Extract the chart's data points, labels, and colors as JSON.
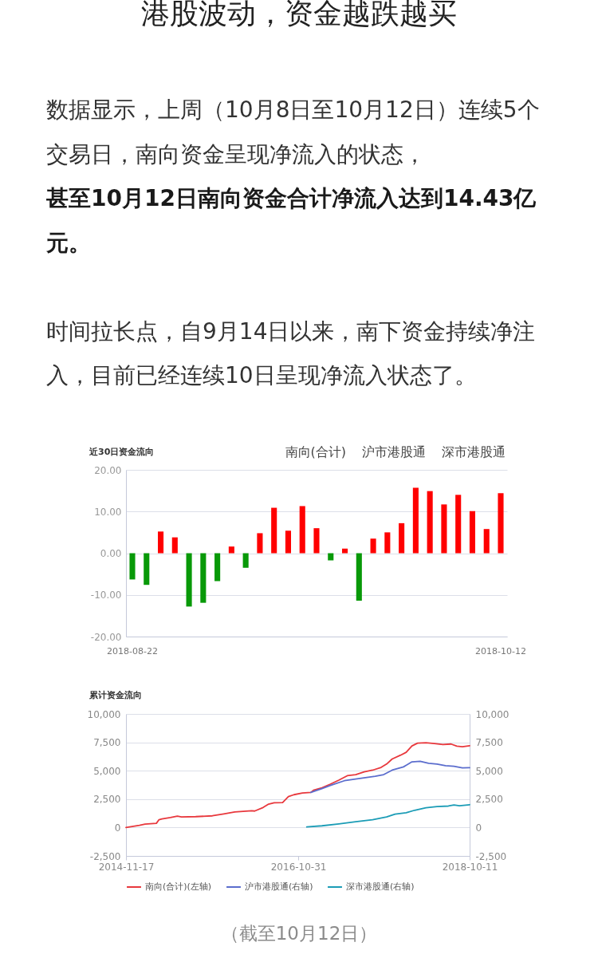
{
  "chart_data": [
    {
      "type": "other",
      "title": "港股波动，资金越跌越买",
      "annotations": [
        "数据显示，上周（10月8日至10月12日）连续5个交易日，南向资金呈现净流入的状态，",
        "甚至10月12日南向资金合计净流入达到14.43亿元。",
        "时间拉长点，自9月14日以来，南下资金持续净注入，目前已经连续10日呈现净流入状态了。"
      ]
    },
    {
      "type": "bar",
      "title": "近30日资金流向",
      "annotations": [
        "南向(合计)",
        "沪市港股通",
        "深市港股通"
      ],
      "categories": [
        "2018-08-22",
        null,
        null,
        null,
        null,
        null,
        null,
        null,
        null,
        null,
        null,
        null,
        null,
        null,
        null,
        null,
        null,
        null,
        null,
        null,
        null,
        null,
        null,
        null,
        null,
        null,
        "2018-10-12"
      ],
      "values": [
        -6.3,
        -7.6,
        5.2,
        3.8,
        -12.8,
        -11.9,
        -6.7,
        1.6,
        -3.5,
        4.8,
        10.9,
        5.4,
        11.3,
        6.0,
        -1.7,
        1.1,
        -11.4,
        3.5,
        5.0,
        7.2,
        15.7,
        14.9,
        11.7,
        14.0,
        10.1,
        5.8,
        14.4
      ],
      "colors": [
        "#089908",
        "#089908",
        "#ff0000",
        "#ff0000",
        "#089908",
        "#089908",
        "#089908",
        "#ff0000",
        "#089908",
        "#ff0000",
        "#ff0000",
        "#ff0000",
        "#ff0000",
        "#ff0000",
        "#089908",
        "#ff0000",
        "#089908",
        "#ff0000",
        "#ff0000",
        "#ff0000",
        "#ff0000",
        "#ff0000",
        "#ff0000",
        "#ff0000",
        "#ff0000",
        "#ff0000",
        "#ff0000"
      ],
      "ylim": [
        -20,
        20
      ],
      "yticks": [
        {
          "value": -20,
          "label": "-20.00"
        },
        {
          "value": -10,
          "label": "-10.00"
        },
        {
          "value": 0,
          "label": "0.00"
        },
        {
          "value": 10,
          "label": "10.00"
        },
        {
          "value": 20,
          "label": "20.00"
        }
      ],
      "grid": "y"
    },
    {
      "type": "line",
      "title": "累计资金流向",
      "annotations": [
        "（截至10月12日）"
      ],
      "xlim": [
        "2014-11-17",
        "2018-10-11"
      ],
      "xticks": [
        "2014-11-17",
        "2016-10-31",
        "2018-10-11"
      ],
      "ylim": [
        -2500,
        10000
      ],
      "yticks": [
        {
          "value": -2500,
          "label": "-2,500"
        },
        0,
        {
          "value": 2500,
          "label": "2,500"
        },
        {
          "value": 5000,
          "label": "5,000"
        },
        {
          "value": 7500,
          "label": "7,500"
        },
        {
          "value": 10000,
          "label": "10,000"
        }
      ],
      "y2lim": [
        -2500,
        10000
      ],
      "y2ticks": [
        {
          "value": -2500,
          "label": "-2,500"
        },
        0,
        {
          "value": 2500,
          "label": "2,500"
        },
        {
          "value": 5000,
          "label": "5,000"
        },
        {
          "value": 7500,
          "label": "7,500"
        },
        {
          "value": 10000,
          "label": "10,000"
        }
      ],
      "series": [
        {
          "name": "南向(合计)(左轴)",
          "color": "#e8383d",
          "x": [
            "2014-11-17",
            "2015-01-12",
            "2015-02-04",
            "2015-03-23",
            "2015-04-03",
            "2015-04-15",
            "2015-05-20",
            "2015-06-18",
            "2015-07-05",
            "2015-09-02",
            "2015-11-10",
            "2015-12-27",
            "2016-02-11",
            "2016-04-21",
            "2016-05-03",
            "2016-06-07",
            "2016-06-30",
            "2016-07-23",
            "2016-08-27",
            "2016-09-20",
            "2016-10-13",
            "2016-11-17",
            "2016-12-22",
            "2017-01-02",
            "2017-02-06",
            "2017-03-13",
            "2017-04-17",
            "2017-05-22",
            "2017-06-26",
            "2017-07-31",
            "2017-09-04",
            "2017-10-09",
            "2017-11-01",
            "2017-11-24",
            "2017-12-29",
            "2018-01-21",
            "2018-02-14",
            "2018-03-09",
            "2018-04-13",
            "2018-05-18",
            "2018-06-22",
            "2018-07-26",
            "2018-08-19",
            "2018-09-11",
            "2018-10-11"
          ],
          "values": [
            0,
            200,
            300,
            370,
            690,
            760,
            880,
            1000,
            930,
            960,
            1030,
            1200,
            1370,
            1470,
            1450,
            1760,
            2060,
            2180,
            2200,
            2720,
            2890,
            3040,
            3090,
            3280,
            3500,
            3820,
            4170,
            4560,
            4660,
            4900,
            5050,
            5290,
            5590,
            6030,
            6370,
            6620,
            7180,
            7430,
            7470,
            7400,
            7300,
            7350,
            7160,
            7110,
            7200
          ]
        },
        {
          "name": "沪市港股通(右轴)",
          "color": "#5b6dcd",
          "axis": "y2",
          "x": [
            "2016-12-22",
            "2017-02-06",
            "2017-03-13",
            "2017-05-10",
            "2017-07-07",
            "2017-08-11",
            "2017-09-15",
            "2017-10-20",
            "2017-11-24",
            "2018-01-10",
            "2018-02-14",
            "2018-03-20",
            "2018-04-24",
            "2018-05-29",
            "2018-07-03",
            "2018-08-07",
            "2018-09-11",
            "2018-10-11"
          ],
          "values": [
            3090,
            3430,
            3700,
            4120,
            4310,
            4410,
            4510,
            4660,
            5050,
            5340,
            5780,
            5830,
            5660,
            5590,
            5440,
            5390,
            5250,
            5270
          ]
        },
        {
          "name": "深市港股通(右轴)",
          "color": "#1b9cb6",
          "axis": "y2",
          "x": [
            "2016-12-05",
            "2017-02-06",
            "2017-04-17",
            "2017-06-26",
            "2017-09-04",
            "2017-11-01",
            "2017-12-06",
            "2018-01-21",
            "2018-02-25",
            "2018-04-13",
            "2018-05-29",
            "2018-07-15",
            "2018-08-07",
            "2018-08-30",
            "2018-10-11"
          ],
          "values": [
            50,
            150,
            320,
            510,
            690,
            930,
            1180,
            1300,
            1520,
            1740,
            1840,
            1890,
            1980,
            1910,
            2010
          ]
        }
      ],
      "grid": "y",
      "legend": "bottom",
      "line_style": "solid"
    }
  ]
}
